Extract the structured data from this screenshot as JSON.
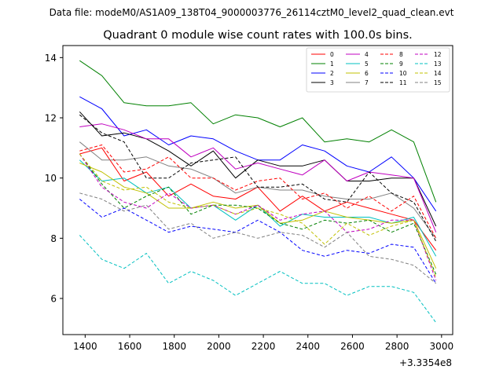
{
  "chart_data": {
    "type": "line",
    "suptitle": "Data file: modeM0/AS1A09_138T04_9000003776_26114cztM0_level2_quad_clean.evt",
    "title": "Quadrant 0 module wise count rates with 100.0s bins.",
    "xlabel": "",
    "ylabel": "",
    "x_offset_label": "+3.3354e8",
    "xlim": [
      1300,
      3050
    ],
    "ylim": [
      4.8,
      14.4
    ],
    "xticks": [
      1400,
      1600,
      1800,
      2000,
      2200,
      2400,
      2600,
      2800,
      3000
    ],
    "yticks": [
      6,
      8,
      10,
      12,
      14
    ],
    "x": [
      1375,
      1475,
      1575,
      1675,
      1775,
      1875,
      1975,
      2075,
      2175,
      2275,
      2375,
      2475,
      2575,
      2675,
      2775,
      2875,
      2975
    ],
    "legend_position": "top-right",
    "series": [
      {
        "name": "0",
        "color": "#ff0000",
        "dash": "solid",
        "values": [
          10.8,
          11.0,
          9.9,
          10.2,
          9.4,
          9.8,
          9.4,
          9.3,
          9.7,
          8.9,
          9.4,
          8.9,
          9.2,
          9.0,
          8.8,
          8.6,
          7.6
        ]
      },
      {
        "name": "1",
        "color": "#008000",
        "dash": "solid",
        "values": [
          13.9,
          13.4,
          12.5,
          12.4,
          12.4,
          12.5,
          11.8,
          12.1,
          12.0,
          11.7,
          12.0,
          11.2,
          11.3,
          11.2,
          11.6,
          11.2,
          9.2
        ]
      },
      {
        "name": "2",
        "color": "#0000ff",
        "dash": "solid",
        "values": [
          12.7,
          12.3,
          11.4,
          11.6,
          11.1,
          11.4,
          11.3,
          10.9,
          10.6,
          10.6,
          11.1,
          10.9,
          10.4,
          10.2,
          10.7,
          10.0,
          8.9
        ]
      },
      {
        "name": "3",
        "color": "#000000",
        "dash": "solid",
        "values": [
          12.2,
          11.4,
          11.5,
          11.3,
          10.9,
          10.4,
          10.9,
          10.0,
          10.6,
          10.4,
          10.4,
          10.6,
          9.9,
          9.9,
          10.0,
          10.0,
          8.4
        ]
      },
      {
        "name": "4",
        "color": "#c000c0",
        "dash": "solid",
        "values": [
          11.7,
          11.8,
          11.6,
          11.3,
          11.3,
          10.7,
          11.0,
          10.3,
          10.5,
          10.3,
          10.1,
          10.6,
          9.9,
          10.2,
          10.1,
          10.0,
          8.2
        ]
      },
      {
        "name": "5",
        "color": "#00c0c0",
        "dash": "solid",
        "values": [
          10.6,
          9.9,
          10.0,
          9.5,
          9.7,
          9.0,
          9.1,
          8.6,
          9.1,
          8.4,
          8.8,
          8.7,
          8.7,
          8.7,
          8.5,
          8.7,
          7.4
        ]
      },
      {
        "name": "6",
        "color": "#c0c000",
        "dash": "solid",
        "values": [
          10.5,
          10.2,
          9.7,
          9.5,
          9.0,
          9.0,
          9.2,
          9.0,
          9.1,
          8.5,
          8.6,
          8.9,
          8.7,
          8.6,
          8.5,
          8.6,
          7.0
        ]
      },
      {
        "name": "7",
        "color": "#808080",
        "dash": "solid",
        "values": [
          11.2,
          10.6,
          10.6,
          10.7,
          10.4,
          10.3,
          10.0,
          9.5,
          9.7,
          9.6,
          9.6,
          9.4,
          9.3,
          9.3,
          9.5,
          9.0,
          8.0
        ]
      },
      {
        "name": "8",
        "color": "#ff0000",
        "dash": "dashed",
        "values": [
          10.9,
          11.1,
          10.2,
          10.3,
          10.7,
          10.0,
          10.0,
          9.6,
          9.9,
          10.0,
          9.3,
          9.5,
          9.0,
          9.4,
          8.9,
          9.4,
          8.0
        ]
      },
      {
        "name": "9",
        "color": "#008000",
        "dash": "dashed",
        "values": [
          10.8,
          9.8,
          9.0,
          9.4,
          9.7,
          8.8,
          9.1,
          9.1,
          9.0,
          8.5,
          8.3,
          8.6,
          8.5,
          8.6,
          8.2,
          8.5,
          6.8
        ]
      },
      {
        "name": "10",
        "color": "#0000ff",
        "dash": "dashed",
        "values": [
          9.3,
          8.7,
          9.0,
          8.6,
          8.2,
          8.4,
          8.3,
          8.2,
          8.6,
          8.2,
          7.6,
          7.4,
          7.6,
          7.5,
          7.8,
          7.7,
          6.5
        ]
      },
      {
        "name": "11",
        "color": "#000000",
        "dash": "dashed",
        "values": [
          12.1,
          11.5,
          11.2,
          10.0,
          10.0,
          10.5,
          10.6,
          10.7,
          9.7,
          9.7,
          9.8,
          9.3,
          9.2,
          10.2,
          9.5,
          9.2,
          7.9
        ]
      },
      {
        "name": "12",
        "color": "#c000c0",
        "dash": "dashed",
        "values": [
          10.8,
          9.7,
          9.2,
          9.0,
          9.5,
          9.0,
          9.1,
          8.8,
          9.1,
          8.6,
          8.8,
          8.9,
          8.2,
          8.3,
          8.6,
          8.6,
          6.6
        ]
      },
      {
        "name": "13",
        "color": "#00c0c0",
        "dash": "dashed",
        "values": [
          8.1,
          7.3,
          7.0,
          7.5,
          6.5,
          6.9,
          6.6,
          6.1,
          6.5,
          6.9,
          6.5,
          6.5,
          6.1,
          6.4,
          6.4,
          6.2,
          5.2
        ]
      },
      {
        "name": "14",
        "color": "#c0c000",
        "dash": "dashed",
        "values": [
          10.8,
          9.9,
          9.6,
          9.7,
          9.2,
          9.0,
          9.1,
          8.8,
          9.0,
          8.8,
          8.5,
          7.8,
          8.5,
          8.1,
          8.4,
          8.6,
          6.7
        ]
      },
      {
        "name": "15",
        "color": "#808080",
        "dash": "dashed",
        "values": [
          9.5,
          9.3,
          8.9,
          9.1,
          8.3,
          8.5,
          8.0,
          8.2,
          8.0,
          8.2,
          8.1,
          7.7,
          8.2,
          7.4,
          7.3,
          7.1,
          6.5
        ]
      }
    ]
  }
}
